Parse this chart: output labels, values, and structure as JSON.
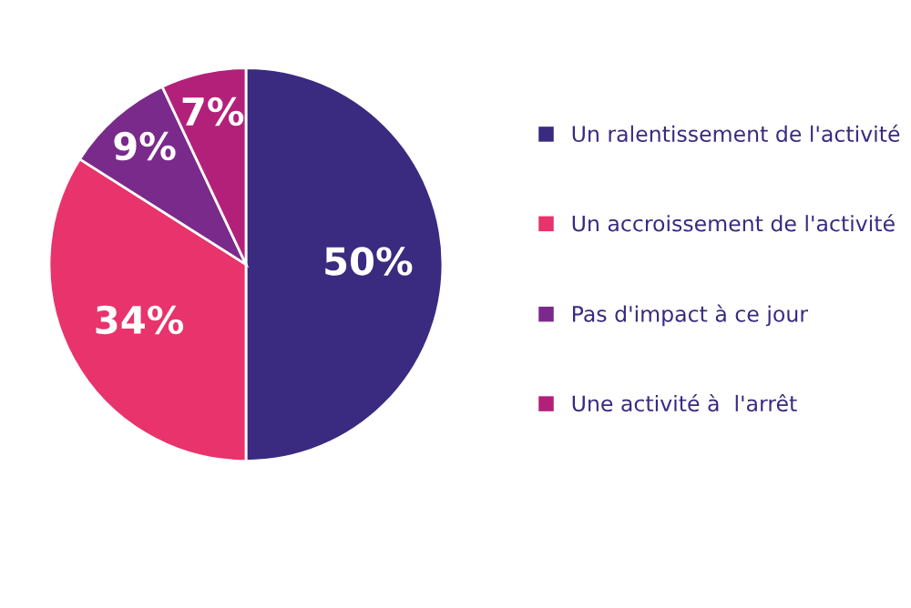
{
  "chart_data": {
    "type": "pie",
    "categories": [
      "Un ralentissement de l'activité",
      "Un accroissement de l'activité",
      "Pas d'impact à ce jour",
      "Une activité à  l'arrêt"
    ],
    "values": [
      50,
      34,
      9,
      7
    ],
    "value_labels": [
      "50%",
      "34%",
      "9%",
      "7%"
    ],
    "colors": [
      "#3a2a80",
      "#e8336c",
      "#7a2a8a",
      "#b3207a"
    ],
    "legend": "right"
  }
}
